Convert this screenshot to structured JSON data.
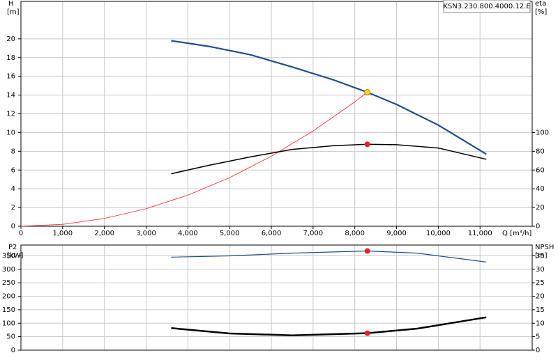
{
  "chart_data": [
    {
      "type": "line",
      "title": "KSN3.230.800.4000.12.E",
      "ylabel": "H",
      "yunit": "[m]",
      "y2label": "eta",
      "y2unit": "[%]",
      "xlabel": "Q [m³/h]",
      "xlim": [
        0,
        12250
      ],
      "ylim": [
        0,
        24
      ],
      "y2lim": [
        0,
        240
      ],
      "xticks": [
        0,
        {
          "value": 1000,
          "label": "1,000"
        },
        {
          "value": 2000,
          "label": "2,000"
        },
        {
          "value": 3000,
          "label": "3,000"
        },
        {
          "value": 4000,
          "label": "4,000"
        },
        {
          "value": 5000,
          "label": "5,000"
        },
        {
          "value": 6000,
          "label": "6,000"
        },
        {
          "value": 7000,
          "label": "7,000"
        },
        {
          "value": 8000,
          "label": "8,000"
        },
        {
          "value": 9000,
          "label": "9,000"
        },
        {
          "value": 10000,
          "label": "10,000"
        },
        {
          "value": 11000,
          "label": "11,000"
        }
      ],
      "yticks": [
        0,
        2,
        4,
        6,
        8,
        10,
        12,
        14,
        16,
        18,
        20
      ],
      "y2ticks": [
        0,
        20,
        40,
        60,
        80,
        100
      ],
      "grid": true,
      "series": [
        {
          "color": "#ff4040",
          "width": 1,
          "x": [
            0,
            1000,
            2000,
            3000,
            4000,
            5000,
            6000,
            7000,
            8000,
            8300
          ],
          "values": [
            0,
            0.21,
            0.83,
            1.87,
            3.32,
            5.19,
            7.47,
            10.17,
            13.28,
            14.3
          ]
        },
        {
          "color": "#1f4e8c",
          "width": 2.2,
          "x": [
            3600,
            4500,
            5500,
            6500,
            7500,
            8300,
            9000,
            10000,
            11150
          ],
          "values": [
            19.8,
            19.2,
            18.3,
            17.0,
            15.6,
            14.3,
            13.0,
            10.8,
            7.7
          ]
        },
        {
          "color": "#000000",
          "width": 1.5,
          "axis": "y2",
          "x": [
            3600,
            4500,
            5500,
            6500,
            7500,
            8300,
            9000,
            10000,
            11150
          ],
          "values": [
            56,
            65,
            74,
            82,
            86,
            87.5,
            87,
            83.5,
            71.5
          ]
        }
      ],
      "markers": [
        {
          "x": 8300,
          "y": 14.3,
          "color": "#ffd21f"
        },
        {
          "x": 8300,
          "y": 87.5,
          "axis": "y2",
          "color": "#ee2222"
        }
      ]
    },
    {
      "type": "line",
      "ylabel": "P2",
      "yunit": "[kW]",
      "y2label": "NPSH",
      "y2unit": "[m]",
      "xlim": [
        0,
        12250
      ],
      "ylim": [
        0,
        390
      ],
      "y2lim": [
        0,
        39
      ],
      "yticks": [
        0,
        50,
        100,
        150,
        200,
        250,
        300,
        350
      ],
      "y2ticks": [
        0,
        5,
        10,
        15,
        20,
        25,
        30,
        35
      ],
      "grid": true,
      "series": [
        {
          "color": "#1f4e8c",
          "width": 1.2,
          "x": [
            3600,
            5000,
            6500,
            8300,
            9500,
            11150
          ],
          "values": [
            345,
            350,
            360,
            368,
            360,
            327
          ]
        },
        {
          "color": "#000000",
          "width": 2.5,
          "axis": "y2",
          "x": [
            3600,
            5000,
            6500,
            8300,
            9500,
            11150
          ],
          "values": [
            8.2,
            6.2,
            5.5,
            6.3,
            8,
            12.2
          ]
        }
      ],
      "markers": [
        {
          "x": 8300,
          "y": 368,
          "color": "#ee2222"
        },
        {
          "x": 8300,
          "y": 6.3,
          "axis": "y2",
          "color": "#ee2222"
        }
      ]
    }
  ]
}
